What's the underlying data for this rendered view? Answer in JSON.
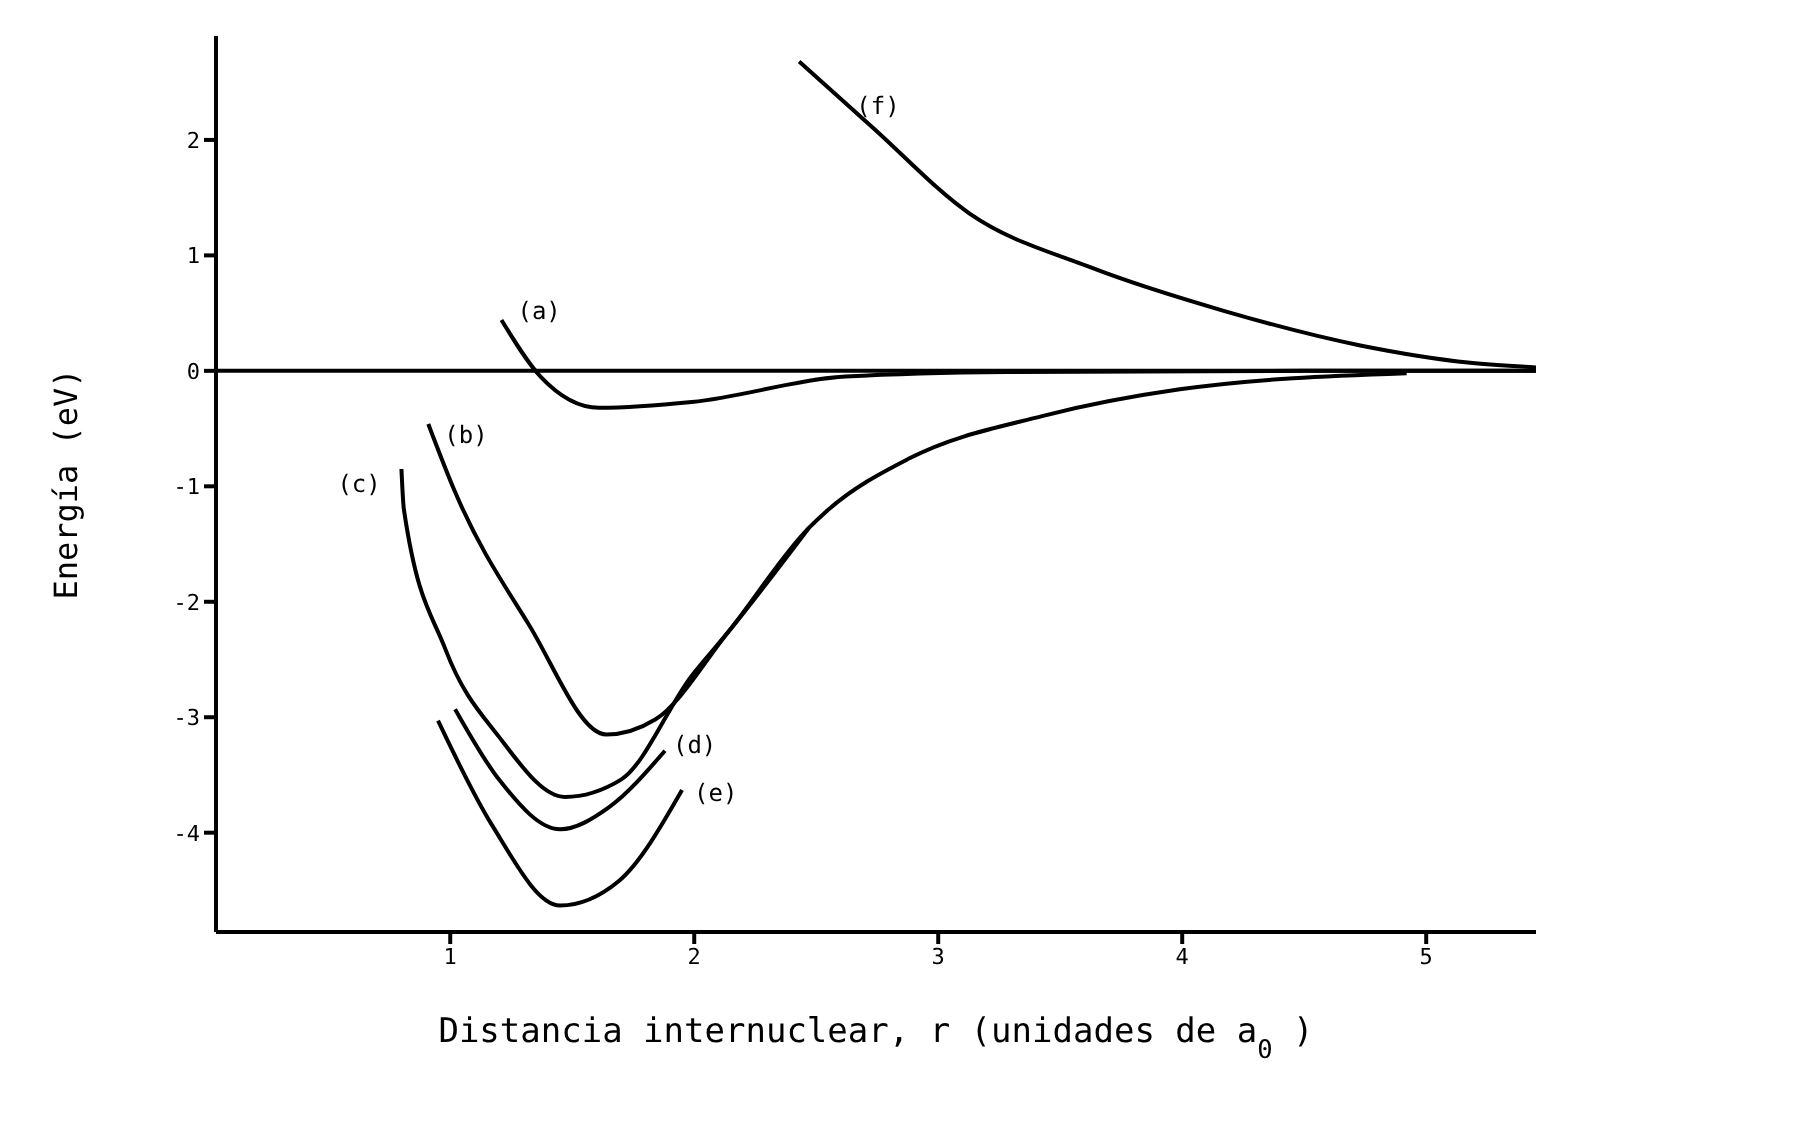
{
  "chart_data": {
    "type": "line",
    "xlabel": "Distancia internuclear, r (unidades de a$_{0}$)",
    "ylabel": "Energía (eV)",
    "xlim": [
      0.04,
      5.45
    ],
    "xticks": [
      1,
      2,
      3,
      4,
      5
    ],
    "ylim": [
      -4.86,
      2.9
    ],
    "yticks": [
      -4,
      -3,
      -2,
      -1,
      0,
      1,
      2
    ],
    "grid": false,
    "legend": false,
    "marker": "none",
    "line_style": "solid",
    "ref_lines": [
      {
        "axis": "y",
        "value": 0,
        "color": "#000000"
      }
    ],
    "series": [
      {
        "name": "(f)",
        "color": "#000000",
        "x": [
          2.43,
          2.73,
          3.13,
          3.62,
          4.17,
          4.73,
          5.18,
          5.45
        ],
        "values": [
          2.68,
          2.11,
          1.36,
          0.9,
          0.52,
          0.22,
          0.07,
          0.03
        ]
      },
      {
        "name": "(a)",
        "color": "#000000",
        "x": [
          1.21,
          1.37,
          1.61,
          1.99,
          2.62,
          3.28,
          4.5,
          5.45
        ],
        "values": [
          0.44,
          -0.05,
          -0.32,
          -0.27,
          -0.05,
          -0.01,
          0,
          0
        ]
      },
      {
        "name": "(b)",
        "color": "#000000",
        "x": [
          0.91,
          1.02,
          1.32,
          1.64,
          1.84,
          2.14,
          2.47,
          2.54,
          2.88,
          3.43,
          3.99,
          4.92
        ],
        "values": [
          -0.46,
          -1.05,
          -2.19,
          -3.15,
          -3.02,
          -2.26,
          -1.36,
          -1.22,
          -0.76,
          -0.39,
          -0.16,
          -0.02
        ]
      },
      {
        "name": "(c)",
        "color": "#000000",
        "x": [
          0.8,
          0.81,
          0.98,
          1.2,
          1.47,
          1.7,
          1.99,
          2.14,
          2.47
        ],
        "values": [
          -0.85,
          -1.2,
          -2.41,
          -3.17,
          -3.69,
          -3.54,
          -2.64,
          -2.26,
          -1.36
        ]
      },
      {
        "name": "(d)",
        "color": "#000000",
        "x": [
          1.02,
          1.2,
          1.45,
          1.65,
          1.88
        ],
        "values": [
          -2.93,
          -3.54,
          -3.97,
          -3.78,
          -3.29
        ]
      },
      {
        "name": "(e)",
        "color": "#000000",
        "x": [
          0.95,
          1.17,
          1.45,
          1.69,
          1.95
        ],
        "values": [
          -3.03,
          -3.93,
          -4.63,
          -4.42,
          -3.63
        ]
      }
    ]
  }
}
